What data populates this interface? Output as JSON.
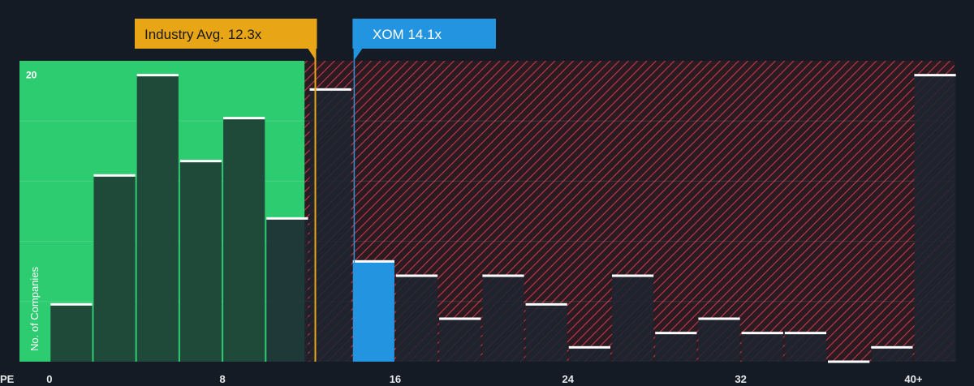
{
  "colors": {
    "background": "#151b24",
    "fair_zone": "#2ecc71",
    "overvalued_zone": "#e04050",
    "bar_fill": "#1f4a3a",
    "bar_top": "#ffffff",
    "subject_bar": "#2394e0",
    "industry_marker": "#e8a516",
    "subject_marker": "#2394e0"
  },
  "industry_callout": {
    "label": "Industry Avg. 12.3x",
    "value": 12.3
  },
  "subject_callout": {
    "label": "XOM 14.1x",
    "value": 14.1
  },
  "chart_data": {
    "type": "bar",
    "title": "",
    "xlabel": "PE",
    "ylabel": "No. of Companies",
    "x_ticks": [
      "0",
      "8",
      "16",
      "24",
      "32",
      "40+"
    ],
    "x_tick_values": [
      0,
      8,
      16,
      24,
      32,
      40
    ],
    "y_ticks": [
      "20"
    ],
    "y_tick_values": [
      20
    ],
    "xlim": [
      -1.4,
      41.9
    ],
    "ylim": [
      0,
      21
    ],
    "grid": true,
    "bin_width": 2,
    "fair_value_limit": 11.8,
    "series": [
      {
        "bins": [
          {
            "x0": 0,
            "value": 4
          },
          {
            "x0": 2,
            "value": 13
          },
          {
            "x0": 4,
            "value": 20
          },
          {
            "x0": 6,
            "value": 14
          },
          {
            "x0": 8,
            "value": 17
          },
          {
            "x0": 10,
            "value": 10
          },
          {
            "x0": 12,
            "value": 19
          },
          {
            "x0": 14,
            "value": 7,
            "highlight": true
          },
          {
            "x0": 16,
            "value": 6
          },
          {
            "x0": 18,
            "value": 3
          },
          {
            "x0": 20,
            "value": 6
          },
          {
            "x0": 22,
            "value": 4
          },
          {
            "x0": 24,
            "value": 1
          },
          {
            "x0": 26,
            "value": 6
          },
          {
            "x0": 28,
            "value": 2
          },
          {
            "x0": 30,
            "value": 3
          },
          {
            "x0": 32,
            "value": 2
          },
          {
            "x0": 34,
            "value": 2
          },
          {
            "x0": 36,
            "value": 0
          },
          {
            "x0": 38,
            "value": 1
          },
          {
            "x0": 40,
            "value": 20
          }
        ]
      }
    ]
  }
}
